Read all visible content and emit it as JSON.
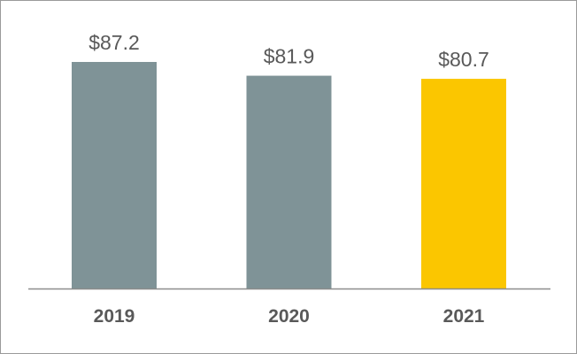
{
  "chart_data": {
    "type": "bar",
    "categories": [
      "2019",
      "2020",
      "2021"
    ],
    "values": [
      87.2,
      81.9,
      80.7
    ],
    "value_labels": [
      "$87.2",
      "$81.9",
      "$80.7"
    ],
    "ylim": [
      0,
      90
    ],
    "grid": false,
    "colors": [
      "#7f9397",
      "#7f9397",
      "#fbc600"
    ],
    "axis_color": "#8c8c8c",
    "label_color": "#595959"
  }
}
